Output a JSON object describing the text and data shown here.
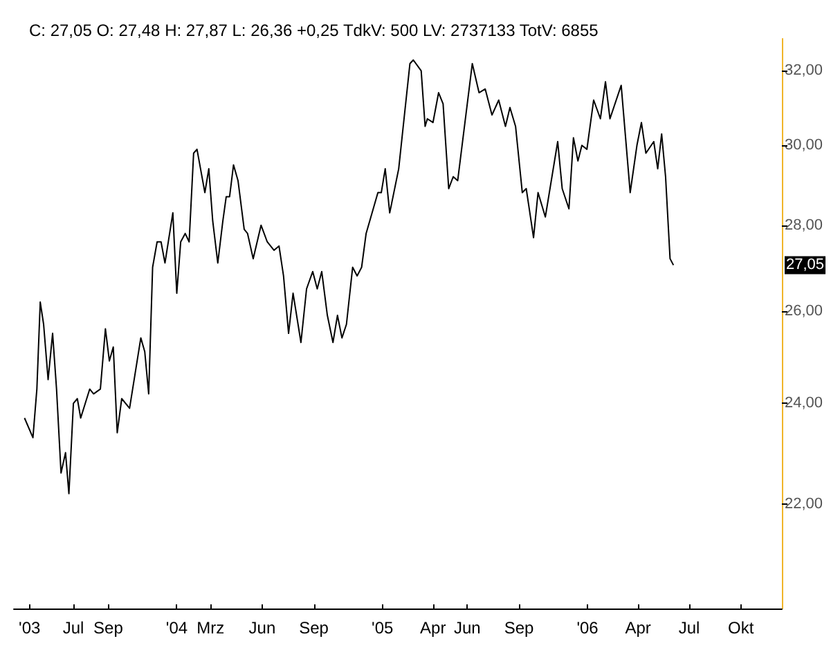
{
  "chart_data": {
    "type": "line",
    "title": "C: 27,05 O: 27,48 H: 27,87 L: 26,36 +0,25 TdkV: 500 LV: 2737133 TotV: 6855",
    "x": [
      "2003-04-05",
      "2003-04-20",
      "2003-04-27",
      "2003-05-03",
      "2003-05-09",
      "2003-05-17",
      "2003-05-25",
      "2003-06-01",
      "2003-06-09",
      "2003-06-17",
      "2003-06-23",
      "2003-07-01",
      "2003-07-08",
      "2003-07-14",
      "2003-07-30",
      "2003-08-06",
      "2003-08-18",
      "2003-08-27",
      "2003-09-03",
      "2003-09-10",
      "2003-09-17",
      "2003-09-25",
      "2003-10-09",
      "2003-10-29",
      "2003-11-05",
      "2003-11-12",
      "2003-11-19",
      "2003-11-27",
      "2003-12-04",
      "2003-12-11",
      "2003-12-25",
      "2004-01-01",
      "2004-01-08",
      "2004-01-16",
      "2004-01-23",
      "2004-01-31",
      "2004-02-06",
      "2004-02-20",
      "2004-02-27",
      "2004-03-05",
      "2004-03-14",
      "2004-03-23",
      "2004-03-29",
      "2004-04-04",
      "2004-04-11",
      "2004-04-19",
      "2004-04-30",
      "2004-05-06",
      "2004-05-16",
      "2004-05-30",
      "2004-06-10",
      "2004-06-22",
      "2004-07-01",
      "2004-07-09",
      "2004-07-18",
      "2004-07-26",
      "2004-08-09",
      "2004-08-19",
      "2004-08-30",
      "2004-09-07",
      "2004-09-15",
      "2004-09-25",
      "2004-10-05",
      "2004-10-13",
      "2004-10-21",
      "2004-10-29",
      "2004-11-09",
      "2004-11-17",
      "2004-11-25",
      "2004-12-03",
      "2004-12-24",
      "2004-12-30",
      "2005-01-06",
      "2005-01-14",
      "2005-01-30",
      "2005-02-19",
      "2005-02-25",
      "2005-03-11",
      "2005-03-18",
      "2005-03-22",
      "2005-04-01",
      "2005-04-11",
      "2005-04-19",
      "2005-04-29",
      "2005-05-07",
      "2005-05-15",
      "2005-06-10",
      "2005-06-22",
      "2005-07-03",
      "2005-07-15",
      "2005-07-27",
      "2005-08-08",
      "2005-08-16",
      "2005-08-26",
      "2005-09-07",
      "2005-09-14",
      "2005-09-27",
      "2005-10-05",
      "2005-10-18",
      "2005-11-09",
      "2005-11-17",
      "2005-11-29",
      "2005-12-07",
      "2005-12-15",
      "2005-12-22",
      "2005-12-31",
      "2006-01-12",
      "2006-01-24",
      "2006-02-02",
      "2006-02-10",
      "2006-03-02",
      "2006-03-18",
      "2006-03-30",
      "2006-04-07",
      "2006-04-15",
      "2006-04-29",
      "2006-05-06",
      "2006-05-13",
      "2006-05-20",
      "2006-05-28",
      "2006-06-03"
    ],
    "series": [
      {
        "color": "#000000",
        "values": [
          23.7,
          23.3,
          24.3,
          26.2,
          25.7,
          24.5,
          25.5,
          24.3,
          22.6,
          23.0,
          22.2,
          24.0,
          24.1,
          23.7,
          24.3,
          24.2,
          24.3,
          25.6,
          24.9,
          25.2,
          23.4,
          24.1,
          23.9,
          25.4,
          25.1,
          24.2,
          27.0,
          27.6,
          27.6,
          27.1,
          28.3,
          26.4,
          27.6,
          27.8,
          27.6,
          29.8,
          29.9,
          28.8,
          29.4,
          28.1,
          27.1,
          28.1,
          28.7,
          28.7,
          29.5,
          29.1,
          27.9,
          27.8,
          27.2,
          28.0,
          27.6,
          27.4,
          27.5,
          26.8,
          25.5,
          26.4,
          25.3,
          26.5,
          26.9,
          26.5,
          26.9,
          25.9,
          25.3,
          25.9,
          25.4,
          25.7,
          27.0,
          26.8,
          27.0,
          27.8,
          28.8,
          28.8,
          29.4,
          28.3,
          29.4,
          32.2,
          32.3,
          32.0,
          30.5,
          30.7,
          30.6,
          31.4,
          31.1,
          28.9,
          29.2,
          29.1,
          32.2,
          31.4,
          31.5,
          30.8,
          31.2,
          30.5,
          31.0,
          30.5,
          28.8,
          28.9,
          27.7,
          28.8,
          28.2,
          30.1,
          28.9,
          28.4,
          30.2,
          29.6,
          30.0,
          29.9,
          31.2,
          30.7,
          31.7,
          30.7,
          31.6,
          28.8,
          30.0,
          30.6,
          29.8,
          30.1,
          29.4,
          30.3,
          29.2,
          27.2,
          27.05
        ]
      }
    ],
    "xlim": [
      "2003-03-17",
      "2006-12-13"
    ],
    "xticks": [
      {
        "value": "2003-04-14",
        "label": "'03"
      },
      {
        "value": "2003-07-01",
        "label": "Jul"
      },
      {
        "value": "2003-09-01",
        "label": "Sep"
      },
      {
        "value": "2004-01-01",
        "label": "'04"
      },
      {
        "value": "2004-03-01",
        "label": "Mrz"
      },
      {
        "value": "2004-06-01",
        "label": "Jun"
      },
      {
        "value": "2004-09-01",
        "label": "Sep"
      },
      {
        "value": "2005-01-01",
        "label": "'05"
      },
      {
        "value": "2005-04-01",
        "label": "Apr"
      },
      {
        "value": "2005-06-01",
        "label": "Jun"
      },
      {
        "value": "2005-09-01",
        "label": "Sep"
      },
      {
        "value": "2006-01-01",
        "label": "'06"
      },
      {
        "value": "2006-04-01",
        "label": "Apr"
      },
      {
        "value": "2006-07-01",
        "label": "Jul"
      },
      {
        "value": "2006-10-01",
        "label": "Okt"
      }
    ],
    "ylim": [
      20.1,
      32.9
    ],
    "yticks": [
      {
        "value": 22,
        "label": "22,00"
      },
      {
        "value": 24,
        "label": "24,00"
      },
      {
        "value": 26,
        "label": "26,00"
      },
      {
        "value": 28,
        "label": "28,00"
      },
      {
        "value": 30,
        "label": "30,00"
      },
      {
        "value": 32,
        "label": "32,00"
      }
    ],
    "log": "y",
    "grid": false,
    "marker": "none",
    "line_style": "solid",
    "annotations": [
      {
        "text": "27,05",
        "y": 27.05
      }
    ]
  }
}
